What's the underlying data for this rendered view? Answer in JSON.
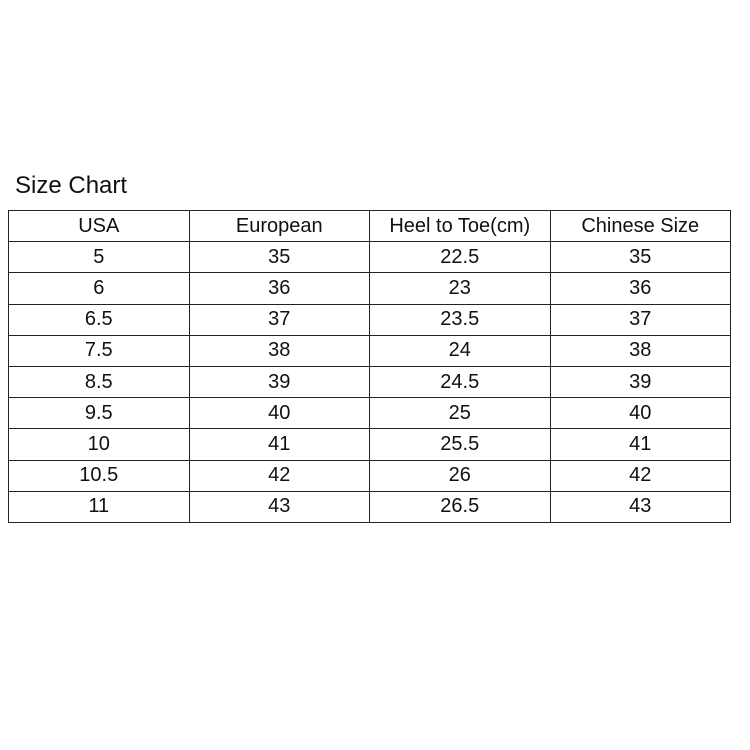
{
  "title": "Size Chart",
  "headers": [
    "USA",
    "European",
    "Heel to Toe(cm)",
    "Chinese Size"
  ],
  "rows": [
    [
      "5",
      "35",
      "22.5",
      "35"
    ],
    [
      "6",
      "36",
      "23",
      "36"
    ],
    [
      "6.5",
      "37",
      "23.5",
      "37"
    ],
    [
      "7.5",
      "38",
      "24",
      "38"
    ],
    [
      "8.5",
      "39",
      "24.5",
      "39"
    ],
    [
      "9.5",
      "40",
      "25",
      "40"
    ],
    [
      "10",
      "41",
      "25.5",
      "41"
    ],
    [
      "10.5",
      "42",
      "26",
      "42"
    ],
    [
      "11",
      "43",
      "26.5",
      "43"
    ]
  ]
}
